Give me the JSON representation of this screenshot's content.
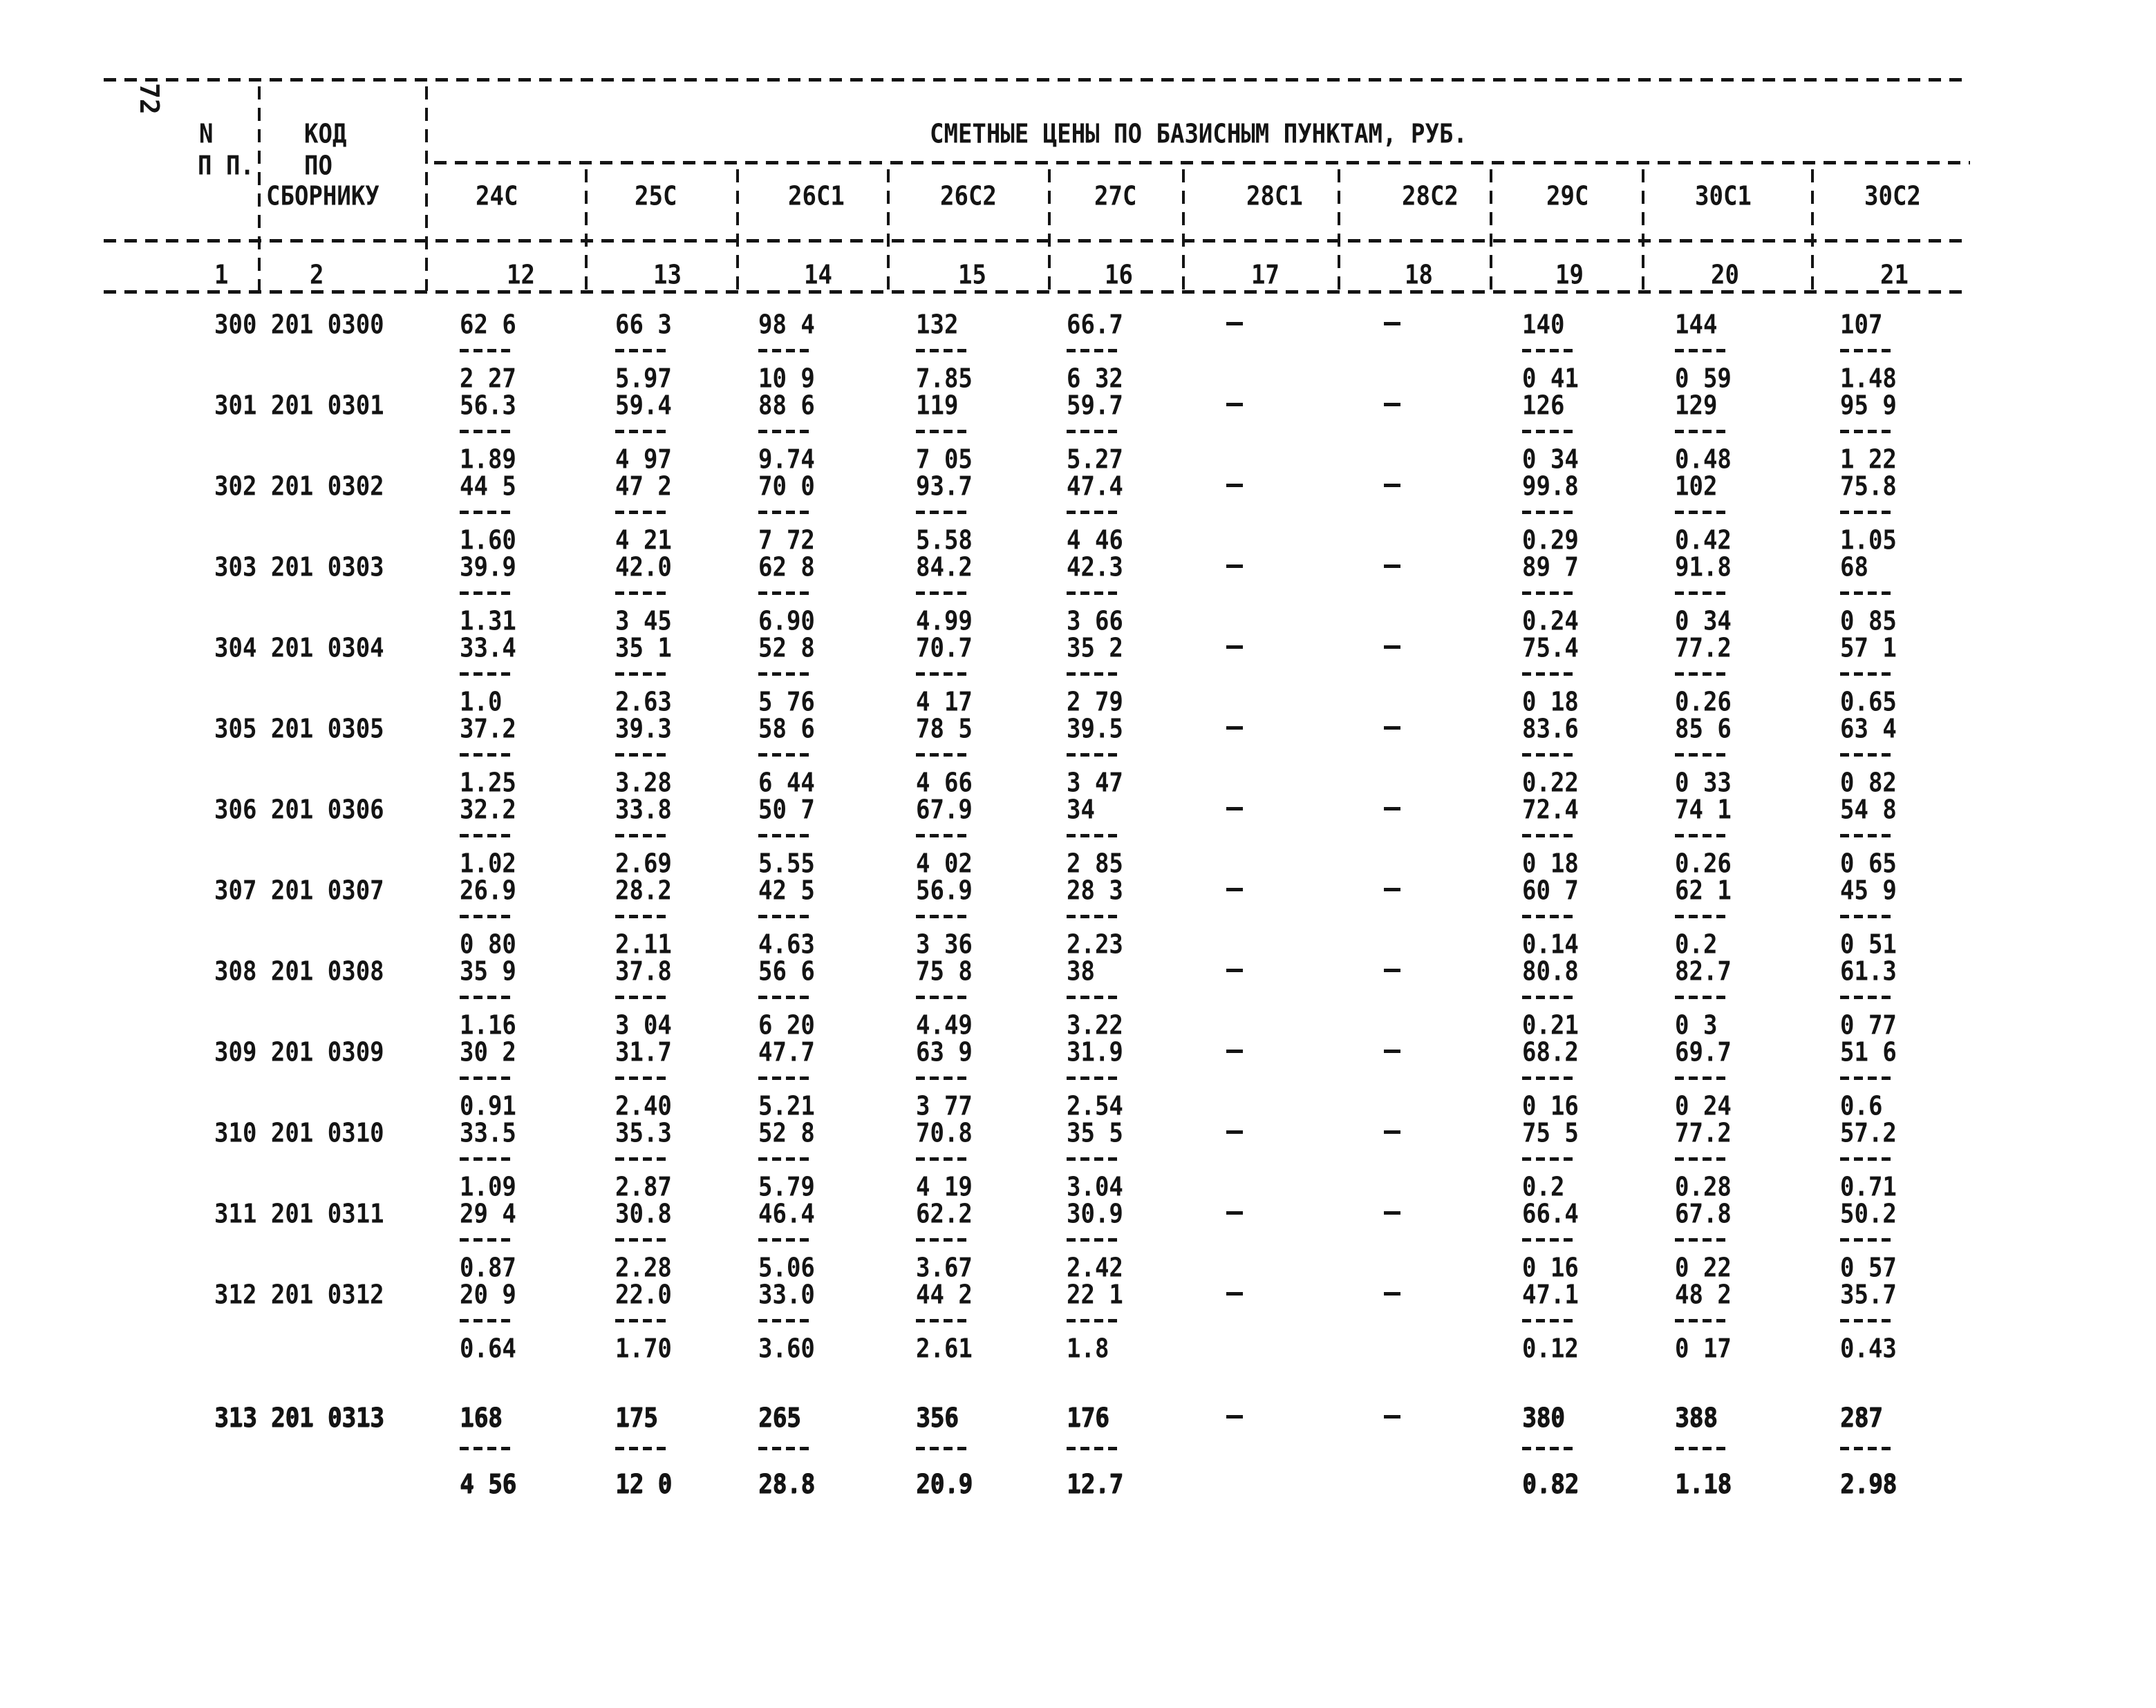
{
  "page": {
    "side_number": "72"
  },
  "table": {
    "title": "СМЕТНЫЕ ЦЕНЫ ПО БАЗИСНЫМ ПУНКТАМ, РУБ.",
    "col_num": {
      "header_lines": [
        "N",
        "П П."
      ],
      "index": "1"
    },
    "col_code": {
      "header_lines": [
        "КОД",
        "ПО",
        "СБОРНИКУ"
      ],
      "index": "2"
    },
    "price_columns": [
      {
        "label": "24С",
        "index": "12"
      },
      {
        "label": "25С",
        "index": "13"
      },
      {
        "label": "26С1",
        "index": "14"
      },
      {
        "label": "26С2",
        "index": "15"
      },
      {
        "label": "27С",
        "index": "16"
      },
      {
        "label": "28С1",
        "index": "17"
      },
      {
        "label": "28С2",
        "index": "18"
      },
      {
        "label": "29С",
        "index": "19"
      },
      {
        "label": "30С1",
        "index": "20"
      },
      {
        "label": "30С2",
        "index": "21"
      }
    ],
    "rows": [
      {
        "n": "300",
        "code": "201 0300",
        "bold": false,
        "cells": [
          {
            "t": "62 6",
            "b": "2 27"
          },
          {
            "t": "66 3",
            "b": "5.97"
          },
          {
            "t": "98 4",
            "b": "10 9"
          },
          {
            "t": "132",
            "b": "7.85"
          },
          {
            "t": "66.7",
            "b": "6 32"
          },
          {
            "t": "-"
          },
          {
            "t": "-"
          },
          {
            "t": "140",
            "b": "0 41"
          },
          {
            "t": "144",
            "b": "0 59"
          },
          {
            "t": "107",
            "b": "1.48"
          }
        ]
      },
      {
        "n": "301",
        "code": "201 0301",
        "bold": false,
        "cells": [
          {
            "t": "56.3",
            "b": "1.89"
          },
          {
            "t": "59.4",
            "b": "4 97"
          },
          {
            "t": "88 6",
            "b": "9.74"
          },
          {
            "t": "119",
            "b": "7 05"
          },
          {
            "t": "59.7",
            "b": "5.27"
          },
          {
            "t": "-"
          },
          {
            "t": "-"
          },
          {
            "t": "126",
            "b": "0 34"
          },
          {
            "t": "129",
            "b": "0.48"
          },
          {
            "t": "95 9",
            "b": "1 22"
          }
        ]
      },
      {
        "n": "302",
        "code": "201 0302",
        "bold": false,
        "cells": [
          {
            "t": "44 5",
            "b": "1.60"
          },
          {
            "t": "47 2",
            "b": "4 21"
          },
          {
            "t": "70 0",
            "b": "7 72"
          },
          {
            "t": "93.7",
            "b": "5.58"
          },
          {
            "t": "47.4",
            "b": "4 46"
          },
          {
            "t": "-"
          },
          {
            "t": "-"
          },
          {
            "t": "99.8",
            "b": "0.29"
          },
          {
            "t": "102",
            "b": "0.42"
          },
          {
            "t": "75.8",
            "b": "1.05"
          }
        ]
      },
      {
        "n": "303",
        "code": "201 0303",
        "bold": false,
        "cells": [
          {
            "t": "39.9",
            "b": "1.31"
          },
          {
            "t": "42.0",
            "b": "3 45"
          },
          {
            "t": "62 8",
            "b": "6.90"
          },
          {
            "t": "84.2",
            "b": "4.99"
          },
          {
            "t": "42.3",
            "b": "3 66"
          },
          {
            "t": "-"
          },
          {
            "t": "-"
          },
          {
            "t": "89 7",
            "b": "0.24"
          },
          {
            "t": "91.8",
            "b": "0 34"
          },
          {
            "t": "68",
            "b": "0 85"
          }
        ]
      },
      {
        "n": "304",
        "code": "201 0304",
        "bold": false,
        "cells": [
          {
            "t": "33.4",
            "b": "1.0"
          },
          {
            "t": "35 1",
            "b": "2.63"
          },
          {
            "t": "52 8",
            "b": "5 76"
          },
          {
            "t": "70.7",
            "b": "4 17"
          },
          {
            "t": "35 2",
            "b": "2 79"
          },
          {
            "t": "-"
          },
          {
            "t": "-"
          },
          {
            "t": "75.4",
            "b": "0 18"
          },
          {
            "t": "77.2",
            "b": "0.26"
          },
          {
            "t": "57 1",
            "b": "0.65"
          }
        ]
      },
      {
        "n": "305",
        "code": "201 0305",
        "bold": false,
        "cells": [
          {
            "t": "37.2",
            "b": "1.25"
          },
          {
            "t": "39.3",
            "b": "3.28"
          },
          {
            "t": "58 6",
            "b": "6 44"
          },
          {
            "t": "78 5",
            "b": "4 66"
          },
          {
            "t": "39.5",
            "b": "3 47"
          },
          {
            "t": "-"
          },
          {
            "t": "-"
          },
          {
            "t": "83.6",
            "b": "0.22"
          },
          {
            "t": "85 6",
            "b": "0 33"
          },
          {
            "t": "63 4",
            "b": "0 82"
          }
        ]
      },
      {
        "n": "306",
        "code": "201 0306",
        "bold": false,
        "cells": [
          {
            "t": "32.2",
            "b": "1.02"
          },
          {
            "t": "33.8",
            "b": "2.69"
          },
          {
            "t": "50 7",
            "b": "5.55"
          },
          {
            "t": "67.9",
            "b": "4 02"
          },
          {
            "t": "34",
            "b": "2 85"
          },
          {
            "t": "-"
          },
          {
            "t": "-"
          },
          {
            "t": "72.4",
            "b": "0 18"
          },
          {
            "t": "74 1",
            "b": "0.26"
          },
          {
            "t": "54 8",
            "b": "0 65"
          }
        ]
      },
      {
        "n": "307",
        "code": "201 0307",
        "bold": false,
        "cells": [
          {
            "t": "26.9",
            "b": "0 80"
          },
          {
            "t": "28.2",
            "b": "2.11"
          },
          {
            "t": "42 5",
            "b": "4.63"
          },
          {
            "t": "56.9",
            "b": "3 36"
          },
          {
            "t": "28 3",
            "b": "2.23"
          },
          {
            "t": "-"
          },
          {
            "t": "-"
          },
          {
            "t": "60 7",
            "b": "0.14"
          },
          {
            "t": "62 1",
            "b": "0.2"
          },
          {
            "t": "45 9",
            "b": "0 51"
          }
        ]
      },
      {
        "n": "308",
        "code": "201 0308",
        "bold": false,
        "cells": [
          {
            "t": "35 9",
            "b": "1.16"
          },
          {
            "t": "37.8",
            "b": "3 04"
          },
          {
            "t": "56 6",
            "b": "6 20"
          },
          {
            "t": "75 8",
            "b": "4.49"
          },
          {
            "t": "38",
            "b": "3.22"
          },
          {
            "t": "-"
          },
          {
            "t": "-"
          },
          {
            "t": "80.8",
            "b": "0.21"
          },
          {
            "t": "82.7",
            "b": "0 3"
          },
          {
            "t": "61.3",
            "b": "0 77"
          }
        ]
      },
      {
        "n": "309",
        "code": "201 0309",
        "bold": false,
        "cells": [
          {
            "t": "30 2",
            "b": "0.91"
          },
          {
            "t": "31.7",
            "b": "2.40"
          },
          {
            "t": "47.7",
            "b": "5.21"
          },
          {
            "t": "63 9",
            "b": "3 77"
          },
          {
            "t": "31.9",
            "b": "2.54"
          },
          {
            "t": "-"
          },
          {
            "t": "-"
          },
          {
            "t": "68.2",
            "b": "0 16"
          },
          {
            "t": "69.7",
            "b": "0 24"
          },
          {
            "t": "51 6",
            "b": "0.6"
          }
        ]
      },
      {
        "n": "310",
        "code": "201 0310",
        "bold": false,
        "cells": [
          {
            "t": "33.5",
            "b": "1.09"
          },
          {
            "t": "35.3",
            "b": "2.87"
          },
          {
            "t": "52 8",
            "b": "5.79"
          },
          {
            "t": "70.8",
            "b": "4 19"
          },
          {
            "t": "35 5",
            "b": "3.04"
          },
          {
            "t": "-"
          },
          {
            "t": "-"
          },
          {
            "t": "75 5",
            "b": "0.2"
          },
          {
            "t": "77.2",
            "b": "0.28"
          },
          {
            "t": "57.2",
            "b": "0.71"
          }
        ]
      },
      {
        "n": "311",
        "code": "201 0311",
        "bold": false,
        "cells": [
          {
            "t": "29 4",
            "b": "0.87"
          },
          {
            "t": "30.8",
            "b": "2.28"
          },
          {
            "t": "46.4",
            "b": "5.06"
          },
          {
            "t": "62.2",
            "b": "3.67"
          },
          {
            "t": "30.9",
            "b": "2.42"
          },
          {
            "t": "-"
          },
          {
            "t": "-"
          },
          {
            "t": "66.4",
            "b": "0 16"
          },
          {
            "t": "67.8",
            "b": "0 22"
          },
          {
            "t": "50.2",
            "b": "0 57"
          }
        ]
      },
      {
        "n": "312",
        "code": "201 0312",
        "bold": false,
        "cells": [
          {
            "t": "20 9",
            "b": "0.64"
          },
          {
            "t": "22.0",
            "b": "1.70"
          },
          {
            "t": "33.0",
            "b": "3.60"
          },
          {
            "t": "44 2",
            "b": "2.61"
          },
          {
            "t": "22 1",
            "b": "1.8"
          },
          {
            "t": "-"
          },
          {
            "t": "-"
          },
          {
            "t": "47.1",
            "b": "0.12"
          },
          {
            "t": "48 2",
            "b": "0 17"
          },
          {
            "t": "35.7",
            "b": "0.43"
          }
        ]
      },
      {
        "n": "313",
        "code": "201 0313",
        "bold": true,
        "cells": [
          {
            "t": "168",
            "b": "4 56"
          },
          {
            "t": "175",
            "b": "12 0"
          },
          {
            "t": "265",
            "b": "28.8"
          },
          {
            "t": "356",
            "b": "20.9"
          },
          {
            "t": "176",
            "b": "12.7"
          },
          {
            "t": "-"
          },
          {
            "t": "-"
          },
          {
            "t": "380",
            "b": "0.82"
          },
          {
            "t": "388",
            "b": "1.18"
          },
          {
            "t": "287",
            "b": "2.98"
          }
        ]
      }
    ]
  }
}
